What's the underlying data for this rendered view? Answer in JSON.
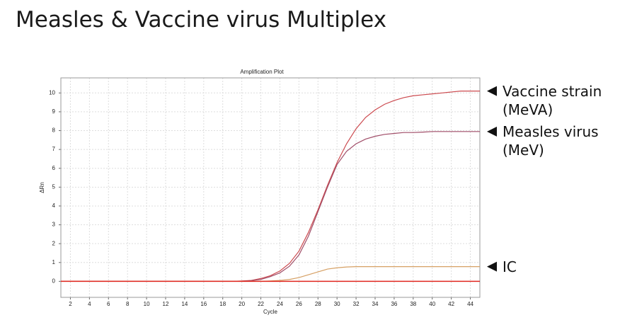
{
  "title": "Measles & Vaccine virus Multiplex",
  "chart_data": {
    "type": "line",
    "title": "Amplification Plot",
    "x_label": "Cycle",
    "y_label": "ΔRn",
    "x": [
      1,
      2,
      3,
      4,
      5,
      6,
      7,
      8,
      9,
      10,
      11,
      12,
      13,
      14,
      15,
      16,
      17,
      18,
      19,
      20,
      21,
      22,
      23,
      24,
      25,
      26,
      27,
      28,
      29,
      30,
      31,
      32,
      33,
      34,
      35,
      36,
      37,
      38,
      39,
      40,
      41,
      42,
      43,
      44,
      45
    ],
    "series": [
      {
        "name": "Vaccine strain (MeVA)",
        "color": "#cc4a4f",
        "values": [
          0,
          0,
          0,
          0,
          0,
          0,
          0,
          0,
          0,
          0,
          0,
          0,
          0,
          0,
          0,
          0,
          0,
          0,
          0,
          0.02,
          0.05,
          0.15,
          0.3,
          0.55,
          0.95,
          1.6,
          2.6,
          3.8,
          5.1,
          6.3,
          7.3,
          8.1,
          8.7,
          9.1,
          9.4,
          9.6,
          9.75,
          9.85,
          9.9,
          9.95,
          10,
          10.05,
          10.1,
          10.1,
          10.1
        ]
      },
      {
        "name": "Measles virus (MeV)",
        "color": "#a04d68",
        "values": [
          0,
          0,
          0,
          0,
          0,
          0,
          0,
          0,
          0,
          0,
          0,
          0,
          0,
          0,
          0,
          0,
          0,
          0,
          0,
          0.01,
          0.04,
          0.1,
          0.25,
          0.45,
          0.8,
          1.4,
          2.4,
          3.7,
          5,
          6.2,
          6.9,
          7.3,
          7.55,
          7.7,
          7.8,
          7.85,
          7.9,
          7.9,
          7.92,
          7.95,
          7.95,
          7.95,
          7.95,
          7.95,
          7.95
        ]
      },
      {
        "name": "IC",
        "color": "#d6a064",
        "values": [
          0,
          0,
          0,
          0,
          0,
          0,
          0,
          0,
          0,
          0,
          0,
          0,
          0,
          0,
          0,
          0,
          0,
          0,
          0,
          0,
          0,
          0,
          0.02,
          0.05,
          0.1,
          0.2,
          0.35,
          0.5,
          0.65,
          0.72,
          0.76,
          0.78,
          0.78,
          0.78,
          0.78,
          0.78,
          0.78,
          0.78,
          0.78,
          0.78,
          0.78,
          0.78,
          0.78,
          0.78,
          0.78
        ]
      },
      {
        "color": "#e0261f",
        "values": [
          0,
          0,
          0,
          0,
          0,
          0,
          0,
          0,
          0,
          0,
          0,
          0,
          0,
          0,
          0,
          0,
          0,
          0,
          0,
          0,
          0,
          0,
          0,
          0,
          0,
          0,
          0,
          0,
          0,
          0,
          0,
          0,
          0,
          0,
          0,
          0,
          0,
          0,
          0,
          0,
          0,
          0,
          0,
          0,
          0
        ]
      }
    ],
    "xlim": [
      1,
      45
    ],
    "ylim": [
      -0.85,
      10.8
    ],
    "xticks": [
      2,
      4,
      6,
      8,
      10,
      12,
      14,
      16,
      18,
      20,
      22,
      24,
      26,
      28,
      30,
      32,
      34,
      36,
      38,
      40,
      42,
      44
    ],
    "yticks": [
      0,
      1,
      2,
      3,
      4,
      5,
      6,
      7,
      8,
      9,
      10
    ],
    "grid": true
  }
}
